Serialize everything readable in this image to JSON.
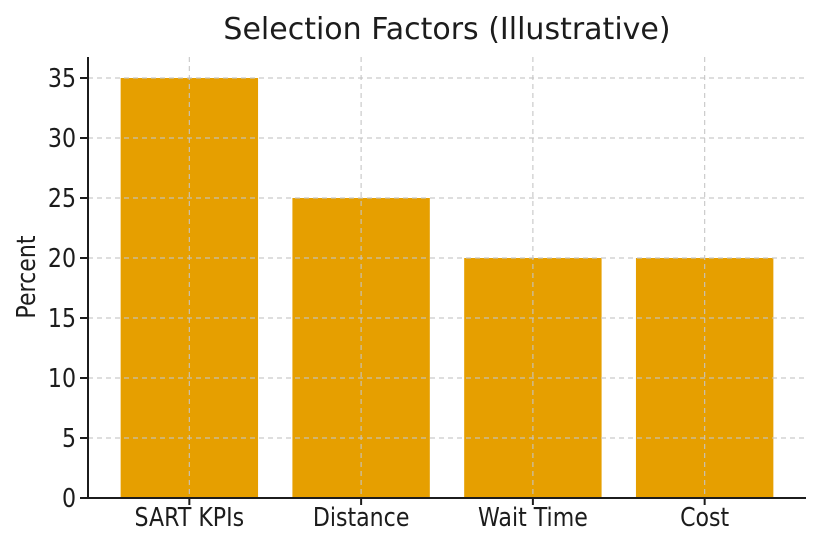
{
  "chart_data": {
    "type": "bar",
    "title": "Selection Factors (Illustrative)",
    "categories": [
      "SART KPIs",
      "Distance",
      "Wait Time",
      "Cost"
    ],
    "values": [
      35,
      25,
      20,
      20
    ],
    "xlabel": "",
    "ylabel": "Percent",
    "ylim": [
      0,
      36.75
    ],
    "yticks": [
      0,
      5,
      10,
      15,
      20,
      25,
      30,
      35
    ],
    "bar_color": "#E69F00",
    "bar_width_fraction": 0.8,
    "background_color": "#ffffff",
    "text_color": "#1c1c1c",
    "axis_color": "#1c1c1c",
    "grid": true,
    "grid_color": "#c4c4c4",
    "grid_style": "dashed",
    "grid_above_bars": true,
    "legend": "none",
    "spines": [
      "left",
      "bottom"
    ]
  }
}
